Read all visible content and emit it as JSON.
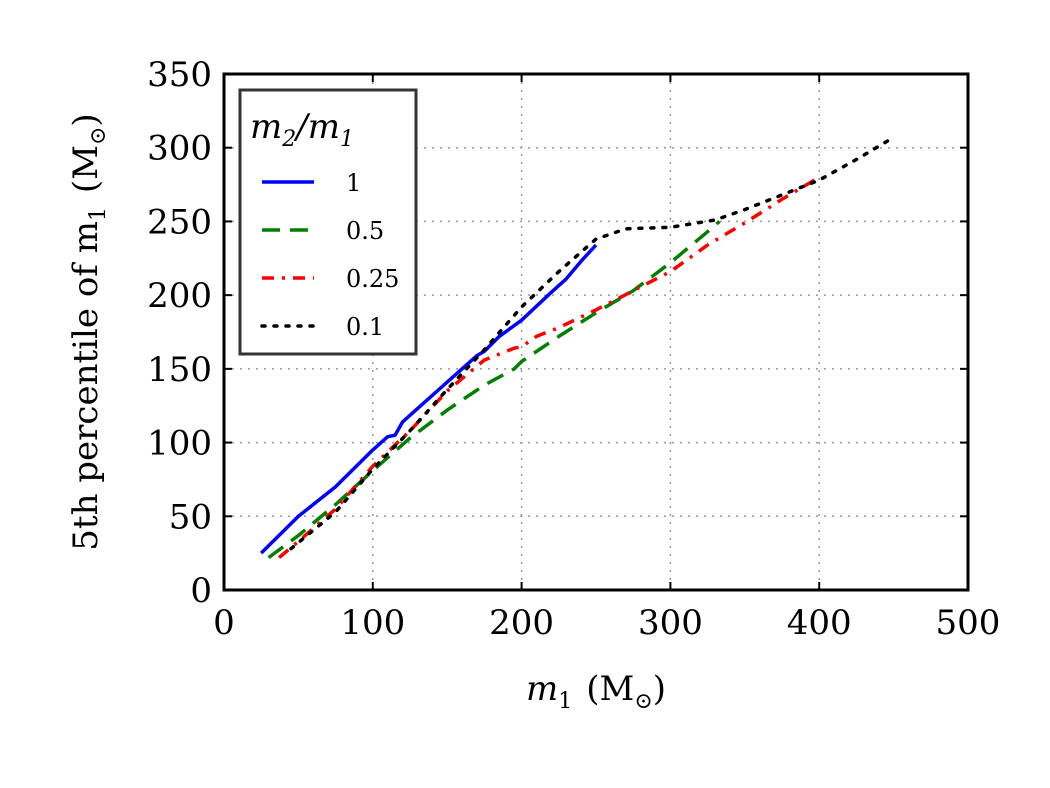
{
  "chart_data": {
    "type": "line",
    "xlabel_main": "m",
    "xlabel_sub": "1",
    "xlabel_unit_open": "(M",
    "xlabel_unit_sub": "⊙",
    "xlabel_unit_close": ")",
    "ylabel_main": "5th percentile of m",
    "ylabel_sub": "1",
    "ylabel_unit_open": "(M",
    "ylabel_unit_sub": "⊙",
    "ylabel_unit_close": ")",
    "xlim": [
      0,
      500
    ],
    "ylim": [
      0,
      350
    ],
    "xticks": [
      "0",
      "100",
      "200",
      "300",
      "400",
      "500"
    ],
    "yticks": [
      "0",
      "50",
      "100",
      "150",
      "200",
      "250",
      "300",
      "350"
    ],
    "grid": true,
    "legend": {
      "placement": "top-left",
      "title_a": "m",
      "title_a_sub": "2",
      "title_slash": "/m",
      "title_b_sub": "1"
    },
    "series": [
      {
        "name": "1",
        "color": "#0000ff",
        "style": "solid",
        "points": [
          [
            25,
            25
          ],
          [
            50,
            50
          ],
          [
            75,
            70
          ],
          [
            100,
            95
          ],
          [
            110,
            104
          ],
          [
            115,
            105
          ],
          [
            120,
            114
          ],
          [
            130,
            123
          ],
          [
            150,
            141
          ],
          [
            170,
            159
          ],
          [
            175,
            162
          ],
          [
            185,
            172
          ],
          [
            200,
            183
          ],
          [
            220,
            202
          ],
          [
            230,
            211
          ],
          [
            240,
            223
          ],
          [
            250,
            234
          ]
        ]
      },
      {
        "name": "0.5",
        "color": "#007f00",
        "style": "dashed",
        "points": [
          [
            30,
            22
          ],
          [
            50,
            37
          ],
          [
            75,
            58
          ],
          [
            100,
            81
          ],
          [
            125,
            103
          ],
          [
            150,
            122
          ],
          [
            175,
            139
          ],
          [
            195,
            150
          ],
          [
            200,
            155
          ],
          [
            225,
            172
          ],
          [
            250,
            188
          ],
          [
            275,
            203
          ],
          [
            300,
            222
          ],
          [
            325,
            243
          ],
          [
            333,
            250
          ]
        ]
      },
      {
        "name": "0.25",
        "color": "#ff0000",
        "style": "dashdot",
        "points": [
          [
            37,
            22
          ],
          [
            50,
            33
          ],
          [
            75,
            55
          ],
          [
            100,
            84
          ],
          [
            125,
            108
          ],
          [
            150,
            135
          ],
          [
            175,
            156
          ],
          [
            195,
            164
          ],
          [
            200,
            165
          ],
          [
            210,
            172
          ],
          [
            225,
            178
          ],
          [
            250,
            190
          ],
          [
            275,
            203
          ],
          [
            300,
            216
          ],
          [
            325,
            234
          ],
          [
            350,
            249
          ],
          [
            375,
            265
          ],
          [
            400,
            280
          ]
        ]
      },
      {
        "name": "0.1",
        "color": "#000000",
        "style": "dotted",
        "points": [
          [
            45,
            28
          ],
          [
            75,
            53
          ],
          [
            100,
            82
          ],
          [
            125,
            108
          ],
          [
            150,
            136
          ],
          [
            175,
            163
          ],
          [
            200,
            192
          ],
          [
            225,
            216
          ],
          [
            250,
            238
          ],
          [
            270,
            245
          ],
          [
            300,
            246
          ],
          [
            330,
            251
          ],
          [
            350,
            258
          ],
          [
            375,
            268
          ],
          [
            400,
            278
          ],
          [
            425,
            292
          ],
          [
            450,
            307
          ]
        ]
      }
    ]
  }
}
